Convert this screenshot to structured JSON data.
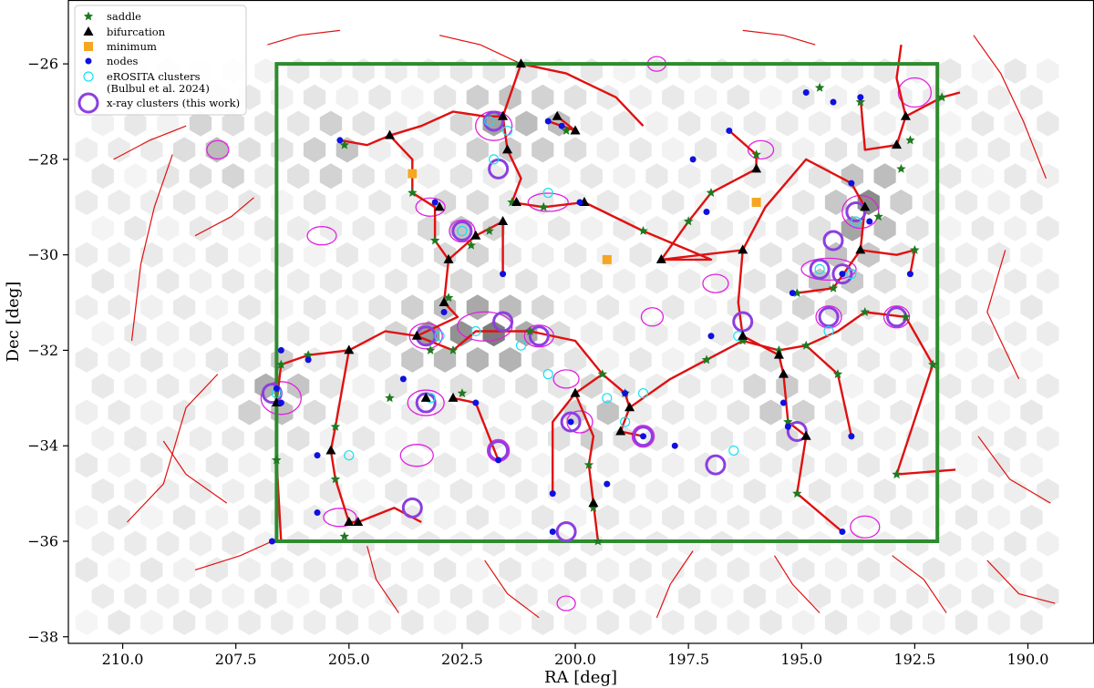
{
  "chart_data": {
    "type": "scatter",
    "xlabel": "RA [deg]",
    "ylabel": "Dec [deg]",
    "xlim": [
      211.2,
      188.6
    ],
    "ylim": [
      -38.1,
      -24.7
    ],
    "x_inverted": true,
    "xticks": [
      210.0,
      207.5,
      205.0,
      202.5,
      200.0,
      197.5,
      195.0,
      192.5,
      190.0
    ],
    "xtick_labels": [
      "210.0",
      "207.5",
      "205.0",
      "202.5",
      "200.0",
      "197.5",
      "195.0",
      "192.5",
      "190.0"
    ],
    "yticks": [
      -26,
      -28,
      -30,
      -32,
      -34,
      -36,
      -38
    ],
    "ytick_labels": [
      "−26",
      "−28",
      "−30",
      "−32",
      "−34",
      "−36",
      "−38"
    ],
    "grid": false,
    "legend_position": "top-left",
    "survey_box": {
      "ra_min": 192.0,
      "ra_max": 206.6,
      "dec_min": -36.0,
      "dec_max": -26.0,
      "color": "#2e8b2e"
    },
    "series": [
      {
        "name": "saddle",
        "marker": "star",
        "color": "#1f7a1f",
        "points": [
          [
            201.2,
            -26.0
          ],
          [
            200.2,
            -27.4
          ],
          [
            205.1,
            -27.7
          ],
          [
            203.6,
            -28.7
          ],
          [
            203.1,
            -29.7
          ],
          [
            201.4,
            -28.9
          ],
          [
            200.7,
            -29.0
          ],
          [
            201.9,
            -29.5
          ],
          [
            202.3,
            -29.8
          ],
          [
            198.5,
            -29.5
          ],
          [
            197.5,
            -29.3
          ],
          [
            197.0,
            -28.7
          ],
          [
            196.0,
            -27.9
          ],
          [
            194.6,
            -26.5
          ],
          [
            193.7,
            -26.8
          ],
          [
            192.8,
            -28.2
          ],
          [
            192.6,
            -27.6
          ],
          [
            191.9,
            -26.7
          ],
          [
            193.3,
            -29.2
          ],
          [
            192.5,
            -29.9
          ],
          [
            194.3,
            -30.7
          ],
          [
            195.1,
            -30.8
          ],
          [
            193.6,
            -31.2
          ],
          [
            192.7,
            -31.3
          ],
          [
            202.8,
            -30.9
          ],
          [
            202.5,
            -32.9
          ],
          [
            203.2,
            -32.0
          ],
          [
            204.1,
            -33.0
          ],
          [
            202.7,
            -32.0
          ],
          [
            205.9,
            -32.1
          ],
          [
            206.5,
            -32.3
          ],
          [
            205.3,
            -33.6
          ],
          [
            205.3,
            -34.7
          ],
          [
            205.1,
            -35.9
          ],
          [
            206.6,
            -34.3
          ],
          [
            201.0,
            -31.6
          ],
          [
            199.4,
            -32.5
          ],
          [
            198.9,
            -32.9
          ],
          [
            197.1,
            -32.2
          ],
          [
            196.3,
            -31.8
          ],
          [
            195.5,
            -32.0
          ],
          [
            194.9,
            -31.9
          ],
          [
            194.2,
            -32.5
          ],
          [
            195.3,
            -33.5
          ],
          [
            195.1,
            -35.0
          ],
          [
            199.7,
            -34.4
          ],
          [
            199.6,
            -35.3
          ],
          [
            199.5,
            -36.0
          ],
          [
            192.1,
            -32.3
          ],
          [
            192.9,
            -34.6
          ]
        ]
      },
      {
        "name": "bifurcation",
        "marker": "triangle",
        "color": "#000000",
        "points": [
          [
            201.2,
            -26.0
          ],
          [
            201.6,
            -27.1
          ],
          [
            200.4,
            -27.1
          ],
          [
            200.0,
            -27.4
          ],
          [
            201.5,
            -27.8
          ],
          [
            204.1,
            -27.5
          ],
          [
            203.0,
            -29.0
          ],
          [
            201.3,
            -28.9
          ],
          [
            201.6,
            -29.3
          ],
          [
            202.2,
            -29.6
          ],
          [
            202.8,
            -30.1
          ],
          [
            202.9,
            -31.0
          ],
          [
            199.8,
            -28.9
          ],
          [
            198.1,
            -30.1
          ],
          [
            196.0,
            -28.2
          ],
          [
            196.3,
            -29.9
          ],
          [
            193.6,
            -29.0
          ],
          [
            193.7,
            -29.9
          ],
          [
            192.7,
            -27.1
          ],
          [
            192.9,
            -27.7
          ],
          [
            203.5,
            -31.7
          ],
          [
            202.7,
            -33.0
          ],
          [
            203.3,
            -33.0
          ],
          [
            205.0,
            -32.0
          ],
          [
            206.6,
            -33.1
          ],
          [
            205.4,
            -34.1
          ],
          [
            204.8,
            -35.6
          ],
          [
            205.0,
            -35.6
          ],
          [
            200.0,
            -32.9
          ],
          [
            198.8,
            -33.2
          ],
          [
            199.0,
            -33.7
          ],
          [
            196.3,
            -31.7
          ],
          [
            195.5,
            -32.1
          ],
          [
            195.4,
            -32.5
          ],
          [
            194.9,
            -33.8
          ],
          [
            199.6,
            -35.2
          ]
        ]
      },
      {
        "name": "minimum",
        "marker": "square",
        "color": "#f5a623",
        "points": [
          [
            203.6,
            -28.3
          ],
          [
            199.3,
            -30.1
          ],
          [
            196.0,
            -28.9
          ]
        ]
      },
      {
        "name": "nodes",
        "marker": "circle",
        "color": "#1010e0",
        "points": [
          [
            205.2,
            -27.6
          ],
          [
            203.1,
            -28.9
          ],
          [
            199.9,
            -28.9
          ],
          [
            200.6,
            -27.2
          ],
          [
            200.3,
            -27.3
          ],
          [
            197.4,
            -28.0
          ],
          [
            197.1,
            -29.1
          ],
          [
            196.6,
            -27.4
          ],
          [
            194.9,
            -26.6
          ],
          [
            193.9,
            -28.5
          ],
          [
            193.5,
            -29.3
          ],
          [
            194.3,
            -26.8
          ],
          [
            193.7,
            -26.7
          ],
          [
            192.6,
            -30.4
          ],
          [
            194.1,
            -30.4
          ],
          [
            195.2,
            -30.8
          ],
          [
            202.9,
            -31.2
          ],
          [
            203.8,
            -32.6
          ],
          [
            206.5,
            -32.0
          ],
          [
            205.9,
            -32.2
          ],
          [
            206.6,
            -32.8
          ],
          [
            206.5,
            -33.1
          ],
          [
            205.7,
            -34.2
          ],
          [
            205.7,
            -35.4
          ],
          [
            206.7,
            -36.0
          ],
          [
            201.6,
            -30.4
          ],
          [
            197.8,
            -34.0
          ],
          [
            199.3,
            -34.8
          ],
          [
            198.9,
            -32.9
          ],
          [
            198.5,
            -33.8
          ],
          [
            200.5,
            -35.0
          ],
          [
            200.5,
            -35.8
          ],
          [
            195.3,
            -33.6
          ],
          [
            193.9,
            -33.8
          ],
          [
            194.1,
            -35.8
          ],
          [
            195.4,
            -33.1
          ],
          [
            197.0,
            -31.7
          ],
          [
            201.7,
            -34.3
          ],
          [
            202.2,
            -33.1
          ],
          [
            200.1,
            -33.5
          ]
        ]
      },
      {
        "name": "eROSITA clusters\n (Bulbul et al. 2024)",
        "marker": "open-circle",
        "color": "#18e0f0",
        "points": [
          [
            201.9,
            -27.2
          ],
          [
            201.5,
            -27.4
          ],
          [
            201.8,
            -28.0
          ],
          [
            200.6,
            -28.7
          ],
          [
            202.5,
            -29.5
          ],
          [
            203.0,
            -31.7
          ],
          [
            202.2,
            -31.6
          ],
          [
            201.2,
            -31.9
          ],
          [
            200.6,
            -32.5
          ],
          [
            199.3,
            -33.0
          ],
          [
            198.9,
            -33.5
          ],
          [
            198.5,
            -32.9
          ],
          [
            203.2,
            -33.0
          ],
          [
            205.0,
            -34.2
          ],
          [
            196.5,
            -34.1
          ],
          [
            193.8,
            -29.3
          ],
          [
            193.9,
            -30.4
          ],
          [
            194.6,
            -30.3
          ],
          [
            196.4,
            -31.7
          ],
          [
            206.6,
            -32.9
          ],
          [
            194.4,
            -31.6
          ]
        ]
      },
      {
        "name": "x-ray clusters (this work)",
        "marker": "open-circle",
        "color": "#8b3fe0",
        "points": [
          [
            201.8,
            -27.2
          ],
          [
            201.7,
            -28.2
          ],
          [
            202.5,
            -29.5
          ],
          [
            203.3,
            -31.7
          ],
          [
            201.6,
            -31.4
          ],
          [
            200.8,
            -31.7
          ],
          [
            203.3,
            -33.1
          ],
          [
            201.7,
            -34.1
          ],
          [
            200.1,
            -33.5
          ],
          [
            198.5,
            -33.8
          ],
          [
            196.9,
            -34.4
          ],
          [
            196.3,
            -31.4
          ],
          [
            194.3,
            -29.7
          ],
          [
            193.8,
            -29.1
          ],
          [
            194.4,
            -31.3
          ],
          [
            192.9,
            -31.3
          ],
          [
            194.6,
            -30.3
          ],
          [
            194.1,
            -30.4
          ],
          [
            206.7,
            -32.9
          ],
          [
            203.6,
            -35.3
          ],
          [
            200.2,
            -35.8
          ],
          [
            195.1,
            -33.7
          ]
        ]
      }
    ]
  }
}
